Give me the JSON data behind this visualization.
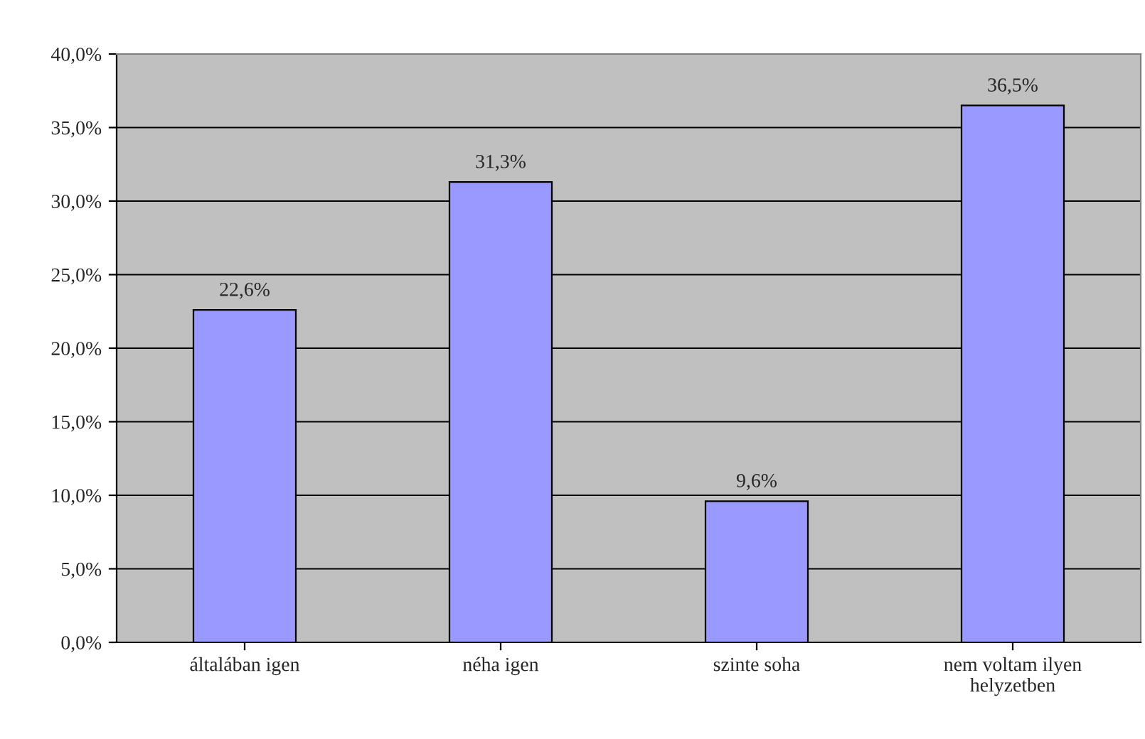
{
  "chart_data": {
    "type": "bar",
    "categories": [
      "általában igen",
      "néha igen",
      "szinte soha",
      "nem voltam ilyen\nhelyzetben"
    ],
    "values": [
      22.6,
      31.3,
      9.6,
      36.5
    ],
    "color": "#9999ff",
    "value_labels": [
      "22,6%",
      "31,3%",
      "9,6%",
      "36,5%"
    ],
    "ylim": [
      0,
      40
    ],
    "yticks": [
      {
        "value": 0,
        "label": "0,0%"
      },
      {
        "value": 5,
        "label": "5,0%"
      },
      {
        "value": 10,
        "label": "10,0%"
      },
      {
        "value": 15,
        "label": "15,0%"
      },
      {
        "value": 20,
        "label": "20,0%"
      },
      {
        "value": 25,
        "label": "25,0%"
      },
      {
        "value": 30,
        "label": "30,0%"
      },
      {
        "value": 35,
        "label": "35,0%"
      },
      {
        "value": 40,
        "label": "40,0%"
      }
    ],
    "grid": "y",
    "legend": false
  }
}
